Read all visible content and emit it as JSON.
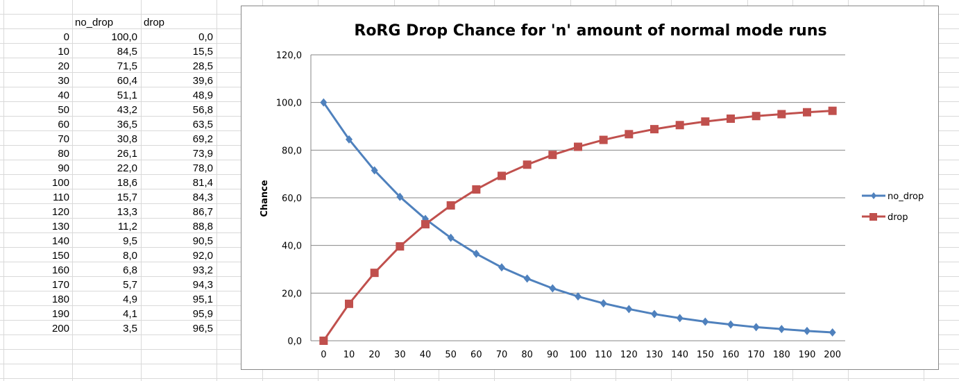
{
  "sheet": {
    "headers": [
      "no_drop",
      "drop"
    ],
    "rows": [
      [
        "0",
        "100,0",
        "0,0"
      ],
      [
        "10",
        "84,5",
        "15,5"
      ],
      [
        "20",
        "71,5",
        "28,5"
      ],
      [
        "30",
        "60,4",
        "39,6"
      ],
      [
        "40",
        "51,1",
        "48,9"
      ],
      [
        "50",
        "43,2",
        "56,8"
      ],
      [
        "60",
        "36,5",
        "63,5"
      ],
      [
        "70",
        "30,8",
        "69,2"
      ],
      [
        "80",
        "26,1",
        "73,9"
      ],
      [
        "90",
        "22,0",
        "78,0"
      ],
      [
        "100",
        "18,6",
        "81,4"
      ],
      [
        "110",
        "15,7",
        "84,3"
      ],
      [
        "120",
        "13,3",
        "86,7"
      ],
      [
        "130",
        "11,2",
        "88,8"
      ],
      [
        "140",
        "9,5",
        "90,5"
      ],
      [
        "150",
        "8,0",
        "92,0"
      ],
      [
        "160",
        "6,8",
        "93,2"
      ],
      [
        "170",
        "5,7",
        "94,3"
      ],
      [
        "180",
        "4,9",
        "95,1"
      ],
      [
        "190",
        "4,1",
        "95,9"
      ],
      [
        "200",
        "3,5",
        "96,5"
      ]
    ]
  },
  "chart_data": {
    "type": "line",
    "title": "RoRG Drop Chance for 'n' amount of normal mode runs",
    "xlabel": "",
    "ylabel": "Chance",
    "categories": [
      "0",
      "10",
      "20",
      "30",
      "40",
      "50",
      "60",
      "70",
      "80",
      "90",
      "100",
      "110",
      "120",
      "130",
      "140",
      "150",
      "160",
      "170",
      "180",
      "190",
      "200"
    ],
    "ylim": [
      0,
      120
    ],
    "yticks": [
      "0,0",
      "20,0",
      "40,0",
      "60,0",
      "80,0",
      "100,0",
      "120,0"
    ],
    "grid": true,
    "legend": "right",
    "series": [
      {
        "name": "no_drop",
        "color": "#4F81BD",
        "marker": "diamond",
        "values": [
          100.0,
          84.5,
          71.5,
          60.4,
          51.1,
          43.2,
          36.5,
          30.8,
          26.1,
          22.0,
          18.6,
          15.7,
          13.3,
          11.2,
          9.5,
          8.0,
          6.8,
          5.7,
          4.9,
          4.1,
          3.5
        ]
      },
      {
        "name": "drop",
        "color": "#C0504D",
        "marker": "square",
        "values": [
          0.0,
          15.5,
          28.5,
          39.6,
          48.9,
          56.8,
          63.5,
          69.2,
          73.9,
          78.0,
          81.4,
          84.3,
          86.7,
          88.8,
          90.5,
          92.0,
          93.2,
          94.3,
          95.1,
          95.9,
          96.5
        ]
      }
    ]
  }
}
